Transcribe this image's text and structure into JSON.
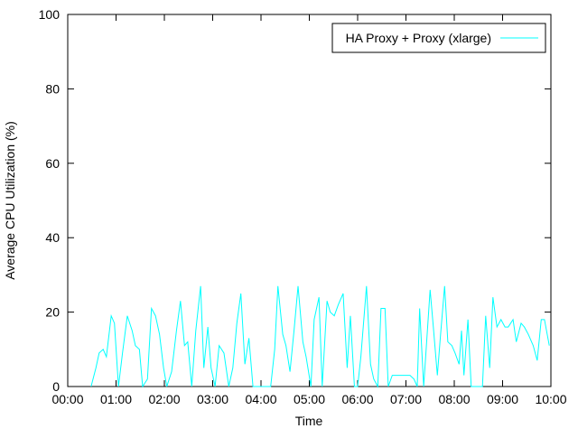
{
  "chart_data": {
    "type": "line",
    "x_label": "Time",
    "y_label": "Average CPU Utilization (%)",
    "xlim": [
      0,
      600
    ],
    "xticks": [
      {
        "value": 0,
        "label": "00:00"
      },
      {
        "value": 60,
        "label": "01:00"
      },
      {
        "value": 120,
        "label": "02:00"
      },
      {
        "value": 180,
        "label": "03:00"
      },
      {
        "value": 240,
        "label": "04:00"
      },
      {
        "value": 300,
        "label": "05:00"
      },
      {
        "value": 360,
        "label": "06:00"
      },
      {
        "value": 420,
        "label": "07:00"
      },
      {
        "value": 480,
        "label": "08:00"
      },
      {
        "value": 540,
        "label": "09:00"
      },
      {
        "value": 600,
        "label": "10:00"
      }
    ],
    "ylim": [
      0,
      100
    ],
    "yticks": [
      0,
      20,
      40,
      60,
      80,
      100
    ],
    "legend": "upper right",
    "x": [
      29,
      35,
      39,
      44,
      48,
      54,
      58,
      63,
      68,
      74,
      80,
      84,
      89,
      93,
      99,
      104,
      109,
      114,
      119,
      123,
      129,
      135,
      140,
      145,
      149,
      154,
      159,
      165,
      169,
      174,
      178,
      183,
      188,
      194,
      200,
      205,
      210,
      215,
      220,
      225,
      230,
      236,
      242,
      248,
      252,
      257,
      261,
      267,
      271,
      276,
      281,
      286,
      292,
      296,
      302,
      306,
      312,
      316,
      322,
      326,
      331,
      336,
      342,
      347,
      351,
      356,
      360,
      364,
      371,
      376,
      380,
      385,
      389,
      394,
      398,
      403,
      407,
      412,
      416,
      421,
      425,
      430,
      434,
      437,
      442,
      446,
      450,
      454,
      459,
      463,
      468,
      472,
      477,
      481,
      486,
      489,
      492,
      497,
      501,
      506,
      510,
      515,
      519,
      524,
      528,
      533,
      538,
      543,
      547,
      553,
      557,
      563,
      567,
      572,
      578,
      583,
      588,
      592,
      598
    ],
    "series": [
      {
        "name": "HA Proxy + Proxy (xlarge)",
        "color": "#00ffff",
        "values": [
          0,
          5,
          9,
          10,
          8,
          19,
          17,
          0,
          9,
          19,
          15,
          11,
          10,
          0,
          2,
          21,
          19,
          14,
          5,
          0,
          4,
          15,
          23,
          11,
          12,
          0,
          15,
          27,
          5,
          16,
          5,
          0,
          11,
          9,
          0,
          5,
          17,
          25,
          6,
          13,
          0,
          0,
          0,
          0,
          0,
          10,
          27,
          14,
          11,
          4,
          15,
          27,
          12,
          8,
          0,
          18,
          24,
          0,
          23,
          20,
          19,
          22,
          25,
          5,
          19,
          0,
          0,
          8,
          27,
          6,
          2,
          0,
          21,
          21,
          0,
          3,
          3,
          3,
          3,
          3,
          3,
          2,
          0,
          21,
          0,
          13,
          26,
          16,
          3,
          14,
          27,
          12,
          11,
          9,
          6,
          15,
          3,
          18,
          0,
          0,
          0,
          0,
          19,
          5,
          24,
          16,
          18,
          16,
          16,
          18,
          12,
          17,
          16,
          14,
          11,
          7,
          18,
          18,
          11
        ]
      }
    ]
  }
}
